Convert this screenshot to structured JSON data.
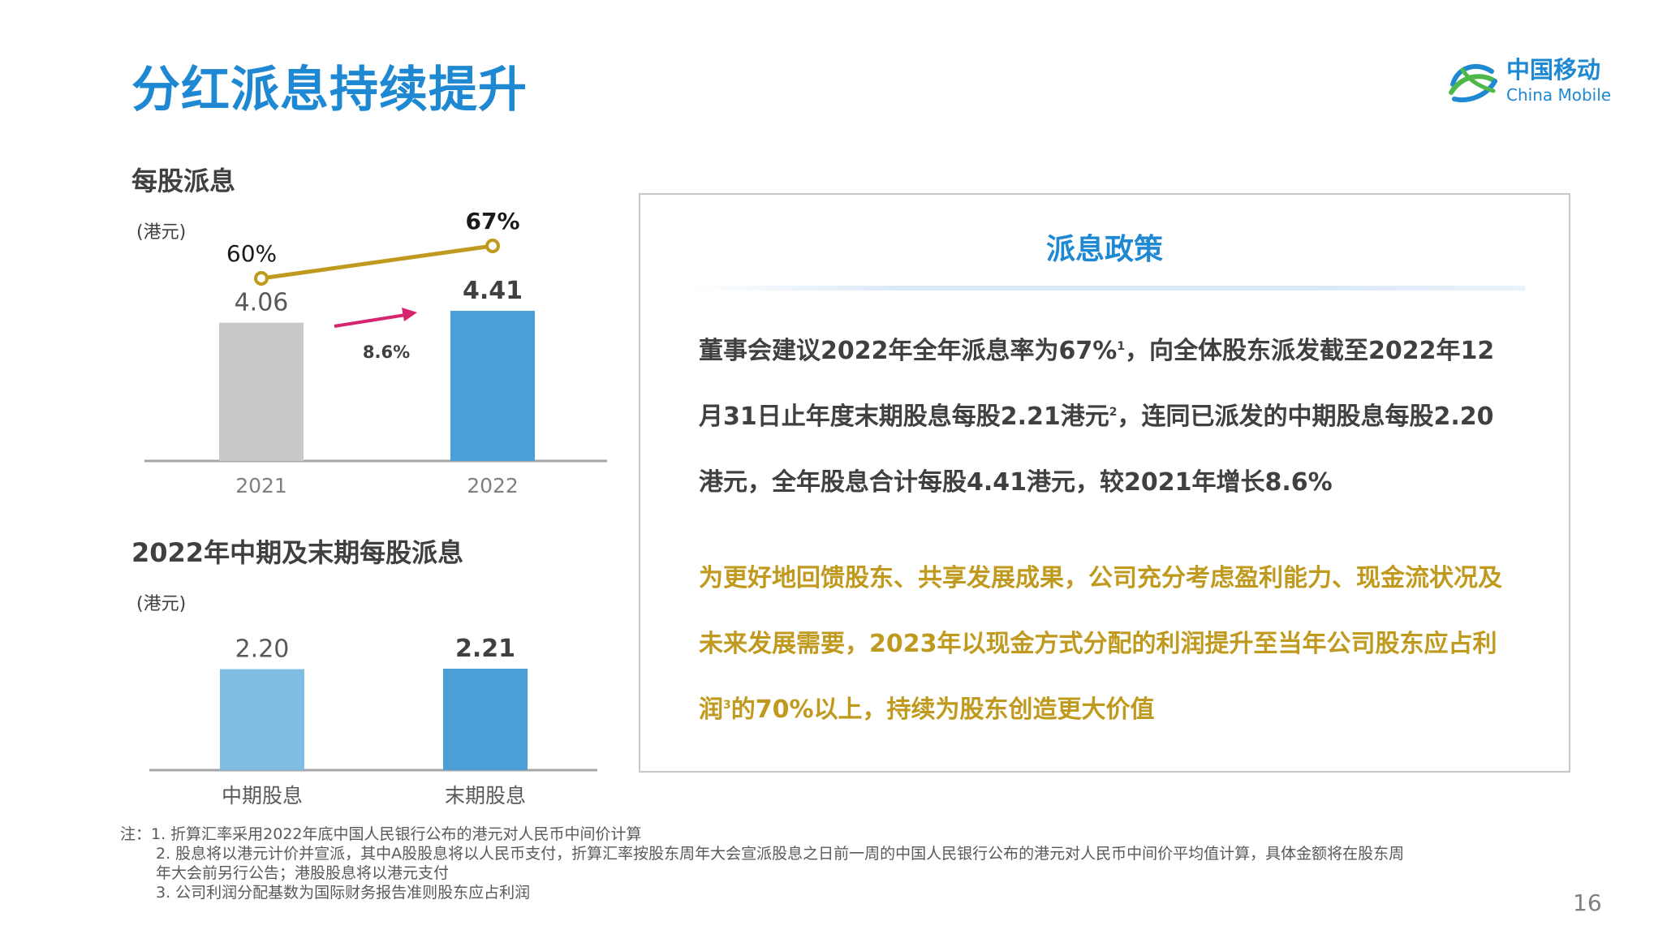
{
  "title": "分红派息持续提升",
  "logo": {
    "cn": "中国移动",
    "en": "China Mobile",
    "icon": "china-mobile-logo-icon"
  },
  "colors": {
    "accent_blue": "#1e88d2",
    "gold": "#c09a1e",
    "magenta": "#d6246e",
    "bar_grey": "#c9c9c9",
    "bar_blue": "#4a9fd6",
    "bar_light_blue": "#7fbde4"
  },
  "chart_data": [
    {
      "type": "bar",
      "title": "每股派息",
      "unit": "(港元)",
      "categories": [
        "2021",
        "2022"
      ],
      "values": [
        4.06,
        4.41
      ],
      "value_labels": [
        "4.06",
        "4.41"
      ],
      "growth_label": "8.6%",
      "ylim": [
        0,
        4.41
      ],
      "line_series": {
        "values": [
          60,
          67
        ],
        "labels": [
          "60%",
          "67%"
        ]
      }
    },
    {
      "type": "bar",
      "title": "2022年中期及末期每股派息",
      "unit": "(港元)",
      "categories": [
        "中期股息",
        "末期股息"
      ],
      "values": [
        2.2,
        2.21
      ],
      "value_labels": [
        "2.20",
        "2.21"
      ],
      "ylim": [
        0,
        2.21
      ]
    }
  ],
  "policy": {
    "title": "派息政策",
    "para1": {
      "p1": "董事会建议2022年全年派息率为67%",
      "sup1": "1",
      "p2": "，向全体股东派发截至2022年12月31日止年度末期股息每股2.21港元",
      "sup2": "2",
      "p3": "，连同已派发的中期股息每股2.20港元，全年股息合计每股4.41港元，较2021年增长8.6%"
    },
    "para2": {
      "p1": "为更好地回馈股东、共享发展成果，公司充分考虑盈利能力、现金流状况及未来发展需要，2023年以现金方式分配的利润提升至当年公司股东应占利润",
      "sup": "3",
      "p2": "的70%以上，持续为股东创造更大价值"
    }
  },
  "notes": {
    "line1": "注：1. 折算汇率采用2022年底中国人民银行公布的港元对人民币中间价计算",
    "line2": "2. 股息将以港元计价并宣派，其中A股股息将以人民币支付，折算汇率按股东周年大会宣派股息之日前一周的中国人民银行公布的港元对人民币中间价平均值计算，具体金额将在股东周",
    "line3": "年大会前另行公告；港股股息将以港元支付",
    "line4": "3. 公司利润分配基数为国际财务报告准则股东应占利润"
  },
  "page_number": "16"
}
